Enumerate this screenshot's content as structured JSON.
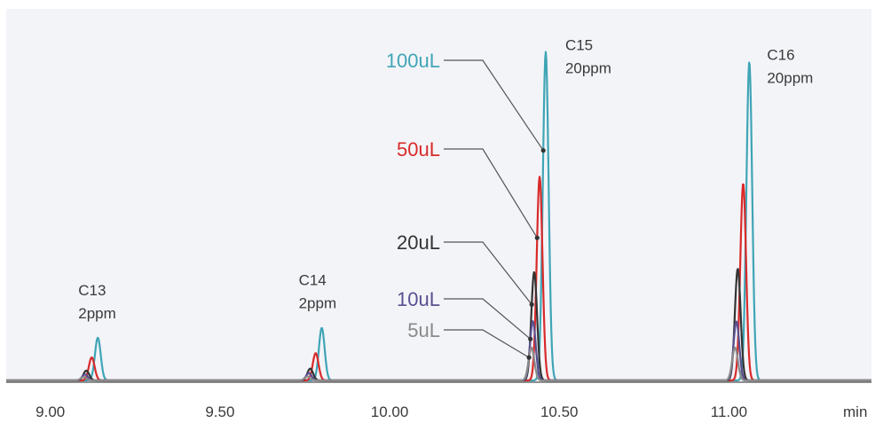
{
  "chart_data": {
    "type": "line",
    "title": "",
    "xlabel": "min",
    "ylabel": "",
    "xlim": [
      8.87,
      11.42
    ],
    "ylim": [
      0,
      1.05
    ],
    "x_ticks": [
      9.0,
      9.5,
      10.0,
      10.5,
      11.0
    ],
    "x_tick_labels": [
      "9.00",
      "9.50",
      "10.00",
      "10.50",
      "11.00"
    ],
    "grid": false,
    "legend_position": "inline-left-of-C15-peak",
    "peaks": [
      {
        "label": "C13",
        "sublabel": "2ppm",
        "rt": 9.14
      },
      {
        "label": "C14",
        "sublabel": "2ppm",
        "rt": 9.8
      },
      {
        "label": "C15",
        "sublabel": "20ppm",
        "rt": 10.46
      },
      {
        "label": "C16",
        "sublabel": "20ppm",
        "rt": 11.06
      }
    ],
    "series": [
      {
        "name": "100uL",
        "color": "#3fa5b5",
        "shift": 0.0,
        "heights": [
          0.13,
          0.16,
          1.0,
          0.97
        ]
      },
      {
        "name": "50uL",
        "color": "#d92a2a",
        "shift": -0.018,
        "heights": [
          0.07,
          0.083,
          0.62,
          0.6
        ]
      },
      {
        "name": "20uL",
        "color": "#333333",
        "shift": -0.034,
        "heights": [
          0.03,
          0.036,
          0.33,
          0.34
        ]
      },
      {
        "name": "10uL",
        "color": "#5a4f8f",
        "shift": -0.038,
        "heights": [
          0.018,
          0.022,
          0.18,
          0.18
        ]
      },
      {
        "name": "5uL",
        "color": "#8a8a8a",
        "shift": -0.042,
        "heights": [
          0.01,
          0.012,
          0.1,
          0.1
        ]
      }
    ],
    "peak_width": 0.0085
  }
}
